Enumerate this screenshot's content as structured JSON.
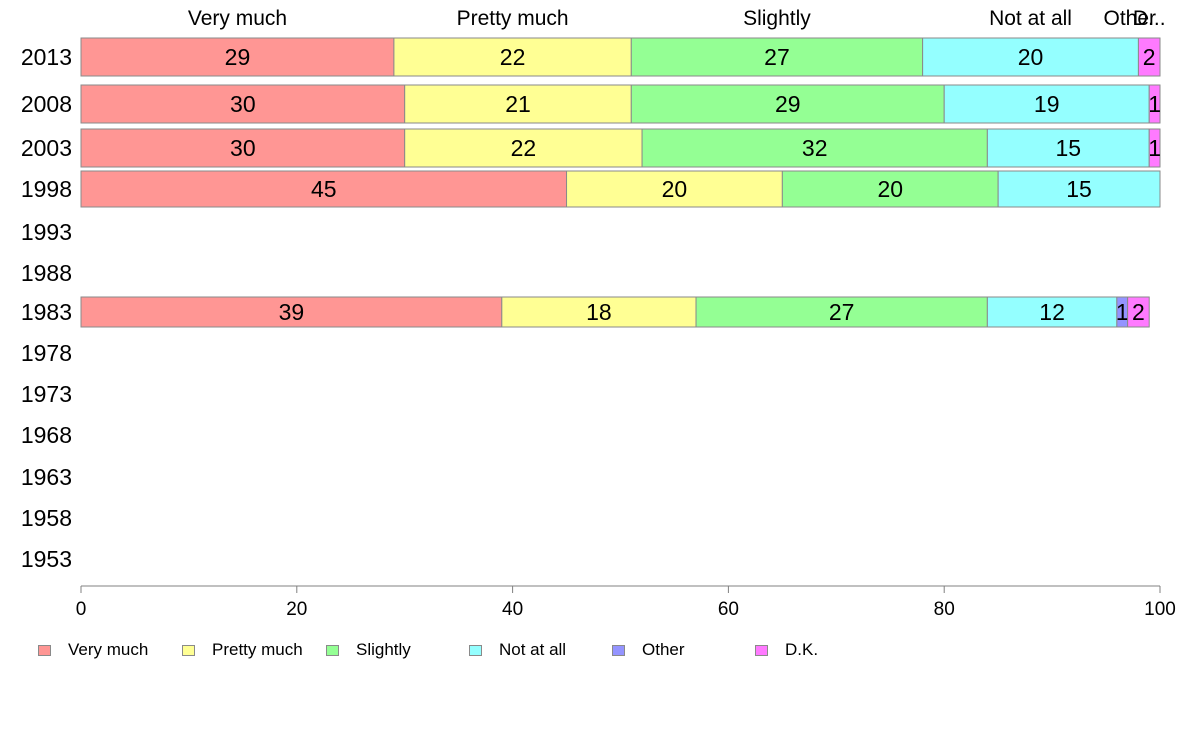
{
  "chart_data": {
    "type": "bar",
    "orientation": "horizontal",
    "stacked": true,
    "title": "",
    "xlabel": "",
    "ylabel": "",
    "xlim": [
      0,
      100
    ],
    "x_ticks": [
      "0",
      "20",
      "40",
      "60",
      "80",
      "100"
    ],
    "categories": [
      "2013",
      "2008",
      "2003",
      "1998",
      "1993",
      "1988",
      "1983",
      "1978",
      "1973",
      "1968",
      "1963",
      "1958",
      "1953"
    ],
    "top_labels": [
      "Very much",
      "Pretty much",
      "Slightly",
      "Not at all",
      "Other",
      "D..."
    ],
    "series": [
      {
        "name": "Very much",
        "color": "#ff9694",
        "values": [
          29,
          30,
          30,
          45,
          null,
          null,
          39,
          null,
          null,
          null,
          null,
          null,
          null
        ]
      },
      {
        "name": "Pretty much",
        "color": "#ffff94",
        "values": [
          22,
          21,
          22,
          20,
          null,
          null,
          18,
          null,
          null,
          null,
          null,
          null,
          null
        ]
      },
      {
        "name": "Slightly",
        "color": "#94ff94",
        "values": [
          27,
          29,
          32,
          20,
          null,
          null,
          27,
          null,
          null,
          null,
          null,
          null,
          null
        ]
      },
      {
        "name": "Not at all",
        "color": "#94ffff",
        "values": [
          20,
          19,
          15,
          15,
          null,
          null,
          12,
          null,
          null,
          null,
          null,
          null,
          null
        ]
      },
      {
        "name": "Other",
        "color": "#9494ff",
        "values": [
          0,
          0,
          0,
          0,
          null,
          null,
          1,
          null,
          null,
          null,
          null,
          null,
          null
        ]
      },
      {
        "name": "D.K.",
        "color": "#ff7aff",
        "values": [
          2,
          1,
          1,
          0,
          null,
          null,
          2,
          null,
          null,
          null,
          null,
          null,
          null
        ]
      }
    ],
    "legend_position": "bottom",
    "grid": false
  }
}
